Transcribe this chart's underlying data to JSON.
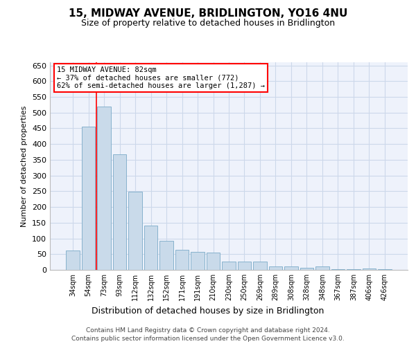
{
  "title": "15, MIDWAY AVENUE, BRIDLINGTON, YO16 4NU",
  "subtitle": "Size of property relative to detached houses in Bridlington",
  "xlabel": "Distribution of detached houses by size in Bridlington",
  "ylabel": "Number of detached properties",
  "categories": [
    "34sqm",
    "54sqm",
    "73sqm",
    "93sqm",
    "112sqm",
    "132sqm",
    "152sqm",
    "171sqm",
    "191sqm",
    "210sqm",
    "230sqm",
    "250sqm",
    "269sqm",
    "289sqm",
    "308sqm",
    "328sqm",
    "348sqm",
    "367sqm",
    "387sqm",
    "406sqm",
    "426sqm"
  ],
  "values": [
    62,
    455,
    520,
    367,
    248,
    140,
    92,
    63,
    57,
    54,
    27,
    26,
    26,
    11,
    12,
    6,
    10,
    3,
    2,
    5,
    3
  ],
  "bar_color": "#c9daea",
  "bar_edge_color": "#7aaac8",
  "grid_color": "#ccd8ea",
  "background_color": "#eef2fb",
  "red_line_x": 1.5,
  "annotation_text": "15 MIDWAY AVENUE: 82sqm\n← 37% of detached houses are smaller (772)\n62% of semi-detached houses are larger (1,287) →",
  "annotation_box_color": "white",
  "annotation_box_edge": "red",
  "footer_line1": "Contains HM Land Registry data © Crown copyright and database right 2024.",
  "footer_line2": "Contains public sector information licensed under the Open Government Licence v3.0.",
  "ylim": [
    0,
    660
  ],
  "yticks": [
    0,
    50,
    100,
    150,
    200,
    250,
    300,
    350,
    400,
    450,
    500,
    550,
    600,
    650
  ]
}
